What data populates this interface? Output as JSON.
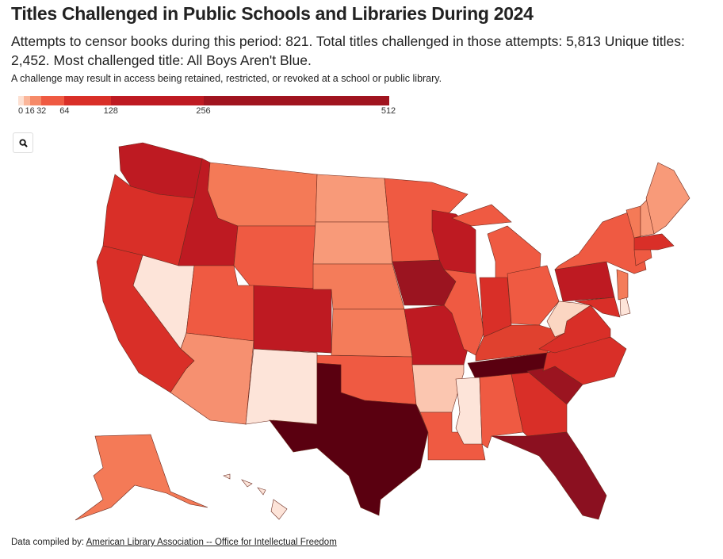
{
  "title": "Titles Challenged in Public Schools and Libraries During 2024",
  "subtitle": "Attempts to censor books during this period: 821. Total titles challenged in those attempts: 5,813 Unique titles: 2,452. Most challenged title: All Boys Aren't Blue.",
  "note": "A challenge may result in access being retained, restricted, or revoked at a school or public library.",
  "legend": {
    "ticks": [
      "0",
      "16",
      "32",
      "64",
      "128",
      "256",
      "512"
    ],
    "tick_values": [
      0,
      16,
      32,
      64,
      128,
      256,
      512
    ],
    "scale_max": 512,
    "bins": [
      {
        "from": 0,
        "to": 8,
        "color": "#fde0d2"
      },
      {
        "from": 8,
        "to": 16,
        "color": "#fbb69a"
      },
      {
        "from": 16,
        "to": 32,
        "color": "#f68a68"
      },
      {
        "from": 32,
        "to": 64,
        "color": "#ef5a42"
      },
      {
        "from": 64,
        "to": 128,
        "color": "#d92f28"
      },
      {
        "from": 128,
        "to": 256,
        "color": "#be1a22"
      },
      {
        "from": 256,
        "to": 512,
        "color": "#a0141f"
      }
    ]
  },
  "zoom_button": {
    "icon": "search-icon"
  },
  "states": {
    "WA": "#be1a22",
    "OR": "#d92f28",
    "CA": "#d92f28",
    "NV": "#fde4d9",
    "ID": "#be1a22",
    "MT": "#f47a57",
    "WY": "#ef5a42",
    "UT": "#ef5a42",
    "CO": "#be1a22",
    "AZ": "#f69070",
    "NM": "#fde4d9",
    "ND": "#f89a79",
    "SD": "#f89a79",
    "NE": "#f47c5a",
    "KS": "#f47c5a",
    "OK": "#ef5a42",
    "TX": "#5a0010",
    "MN": "#ef5a42",
    "IA": "#9b1420",
    "MO": "#be1a22",
    "AR": "#fbc6b0",
    "LA": "#ef5a42",
    "WI": "#be1a22",
    "IL": "#ef5a42",
    "MI": "#ef5a42",
    "IN": "#d92f28",
    "OH": "#ef5a42",
    "KY": "#e0412f",
    "TN": "#5a0010",
    "MS": "#fde4d9",
    "AL": "#ef5a42",
    "GA": "#d92f28",
    "FL": "#8b1020",
    "SC": "#9b1420",
    "NC": "#d92f28",
    "VA": "#d92f28",
    "WV": "#fbd6c2",
    "PA": "#be1a22",
    "NY": "#ef5a42",
    "MD": "#d92f28",
    "DE": "#fde4d9",
    "NJ": "#f47c5a",
    "CT": "#ef5a42",
    "MA": "#d92f28",
    "VT": "#f47a57",
    "NH": "#f89a79",
    "ME": "#f89a79",
    "AK": "#f47a57",
    "HI": "#fde4d9"
  },
  "footer": {
    "prefix": "Data compiled by: ",
    "link": "American Library Association -- Office for Intellectual Freedom"
  }
}
